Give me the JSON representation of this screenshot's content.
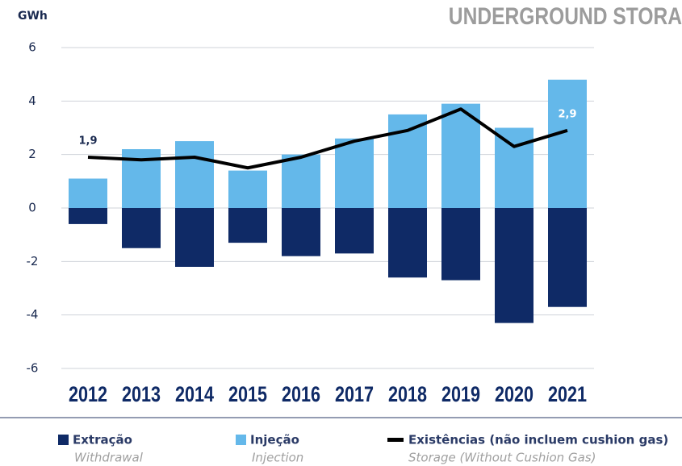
{
  "chart_data": {
    "type": "bar_line",
    "title": "UNDERGROUND STORA",
    "y_axis_label": "GWh",
    "categories": [
      "2012",
      "2013",
      "2014",
      "2015",
      "2016",
      "2017",
      "2018",
      "2019",
      "2020",
      "2021"
    ],
    "series": [
      {
        "name": "Extração",
        "translation": "Withdrawal",
        "color": "#0f2a66",
        "kind": "bar",
        "values": [
          -0.6,
          -1.5,
          -2.2,
          -1.3,
          -1.8,
          -1.7,
          -2.6,
          -2.7,
          -4.3,
          -3.7
        ]
      },
      {
        "name": "Injeção",
        "translation": "Injection",
        "color": "#64b8ea",
        "kind": "bar",
        "values": [
          1.1,
          2.2,
          2.5,
          1.4,
          2.0,
          2.6,
          3.5,
          3.9,
          3.0,
          4.8
        ]
      },
      {
        "name": "Existências (não incluem  cushion gas)",
        "translation": "Storage (Without Cushion Gas)",
        "color": "#000000",
        "kind": "line",
        "values": [
          1.9,
          1.8,
          1.9,
          1.5,
          1.9,
          2.5,
          2.9,
          3.7,
          2.3,
          2.9
        ],
        "value_labels": [
          "1,9",
          null,
          null,
          null,
          null,
          null,
          null,
          null,
          null,
          "2,9"
        ]
      }
    ],
    "ylim": [
      -6,
      6
    ],
    "yticks": [
      -6,
      -4,
      -2,
      0,
      2,
      4,
      6
    ],
    "grid": true
  }
}
